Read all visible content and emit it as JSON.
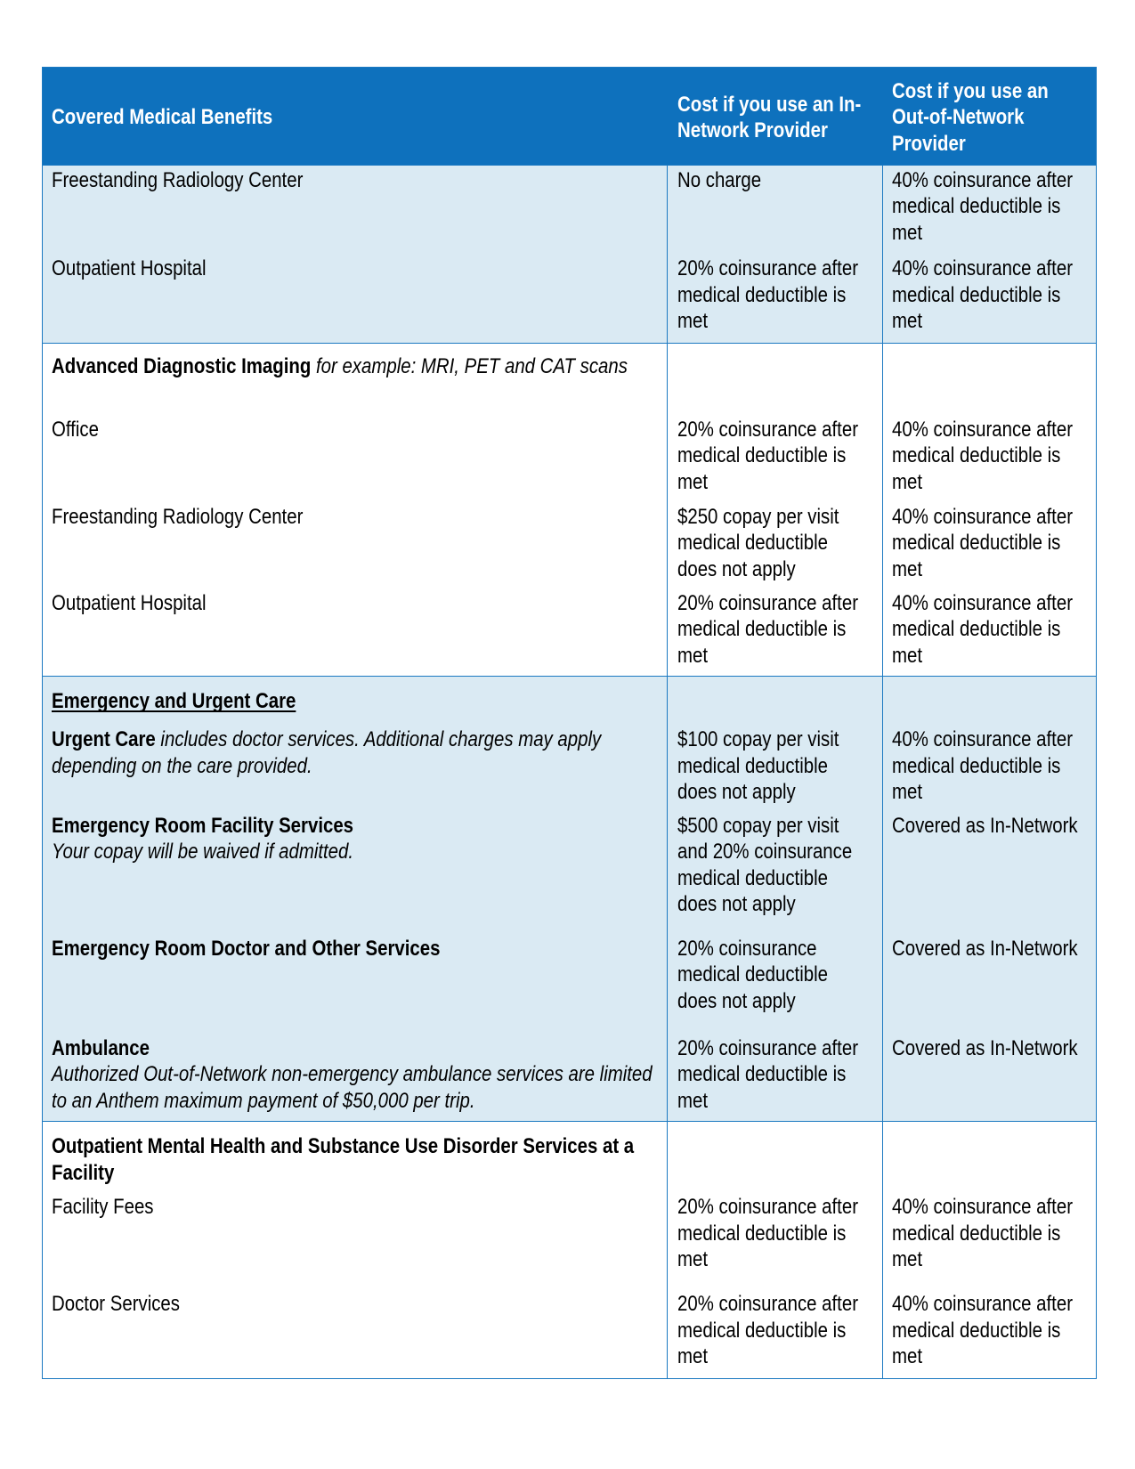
{
  "colors": {
    "header_bg": "#0e71bd",
    "border": "#1b79c1",
    "shaded_row_bg": "#daeaf3",
    "header_text": "#ffffff",
    "body_text": "#000000"
  },
  "table": {
    "columns": [
      "Covered Medical Benefits",
      "Cost if you use an In-Network Provider",
      "Cost if you use an Out-of-Network Provider"
    ],
    "sections": [
      {
        "shaded": true,
        "rows": [
          {
            "benefit": [
              {
                "t": "Freestanding Radiology Center"
              }
            ],
            "in_network": [
              "No charge"
            ],
            "out_of_network": [
              "40% coinsurance after medical deductible is met"
            ]
          },
          {
            "benefit": [
              {
                "t": "Outpatient Hospital"
              }
            ],
            "in_network": [
              "20% coinsurance after medical deductible is met"
            ],
            "out_of_network": [
              "40% coinsurance after medical deductible is met"
            ]
          }
        ]
      },
      {
        "shaded": false,
        "rows": [
          {
            "benefit": [
              {
                "t": "Advanced Diagnostic Imaging",
                "b": true
              },
              {
                "t": " for example: MRI, PET and CAT scans",
                "i": true
              }
            ],
            "in_network": [],
            "out_of_network": []
          },
          {
            "benefit": [
              {
                "t": "Office"
              }
            ],
            "in_network": [
              "20% coinsurance after medical deductible is met"
            ],
            "out_of_network": [
              "40% coinsurance after medical deductible is met"
            ]
          },
          {
            "benefit": [
              {
                "t": "Freestanding Radiology Center"
              }
            ],
            "in_network": [
              "$250 copay per visit",
              "medical deductible does not apply"
            ],
            "out_of_network": [
              "40% coinsurance after medical deductible is met"
            ]
          },
          {
            "benefit": [
              {
                "t": "Outpatient Hospital"
              }
            ],
            "in_network": [
              "20% coinsurance after medical deductible is met"
            ],
            "out_of_network": [
              "40% coinsurance after medical deductible is met"
            ]
          }
        ]
      },
      {
        "shaded": true,
        "rows": [
          {
            "benefit": [
              {
                "t": "Emergency and Urgent Care",
                "b": true,
                "u": true
              }
            ],
            "in_network": [],
            "out_of_network": []
          },
          {
            "benefit": [
              {
                "t": "Urgent Care",
                "b": true
              },
              {
                "t": " includes doctor services. Additional charges may apply depending on the care provided.",
                "i": true
              }
            ],
            "in_network": [
              "$100 copay per visit",
              "medical deductible does not apply"
            ],
            "out_of_network": [
              "40% coinsurance after medical deductible is met"
            ]
          },
          {
            "benefit": [
              {
                "t": "Emergency Room Facility Services",
                "b": true
              },
              {
                "t": "Your copay will be waived if admitted.",
                "i": true,
                "br": true
              }
            ],
            "in_network": [
              "$500 copay per visit and 20% coinsurance",
              "medical deductible does not apply"
            ],
            "out_of_network": [
              "Covered as In-Network"
            ]
          },
          {
            "benefit": [
              {
                "t": "Emergency Room Doctor and Other Services",
                "b": true
              }
            ],
            "in_network": [
              "20% coinsurance",
              "medical deductible does not apply"
            ],
            "out_of_network": [
              "Covered as In-Network"
            ]
          },
          {
            "benefit": [
              {
                "t": "Ambulance",
                "b": true
              },
              {
                "t": "Authorized Out-of-Network non-emergency ambulance services are limited to an Anthem maximum payment of $50,000 per trip.",
                "i": true,
                "br": true
              }
            ],
            "in_network": [
              "20% coinsurance after medical deductible is met"
            ],
            "out_of_network": [
              "Covered as In-Network"
            ]
          }
        ]
      },
      {
        "shaded": false,
        "rows": [
          {
            "benefit": [
              {
                "t": "Outpatient Mental Health and Substance Use Disorder Services at a Facility",
                "b": true
              }
            ],
            "in_network": [],
            "out_of_network": []
          },
          {
            "benefit": [
              {
                "t": "Facility Fees"
              }
            ],
            "in_network": [
              "20% coinsurance after medical deductible is met"
            ],
            "out_of_network": [
              "40% coinsurance after medical deductible is met"
            ]
          },
          {
            "benefit": [
              {
                "t": "Doctor Services"
              }
            ],
            "in_network": [
              "20% coinsurance after medical deductible is met"
            ],
            "out_of_network": [
              "40% coinsurance after medical deductible is met"
            ]
          }
        ]
      }
    ]
  }
}
